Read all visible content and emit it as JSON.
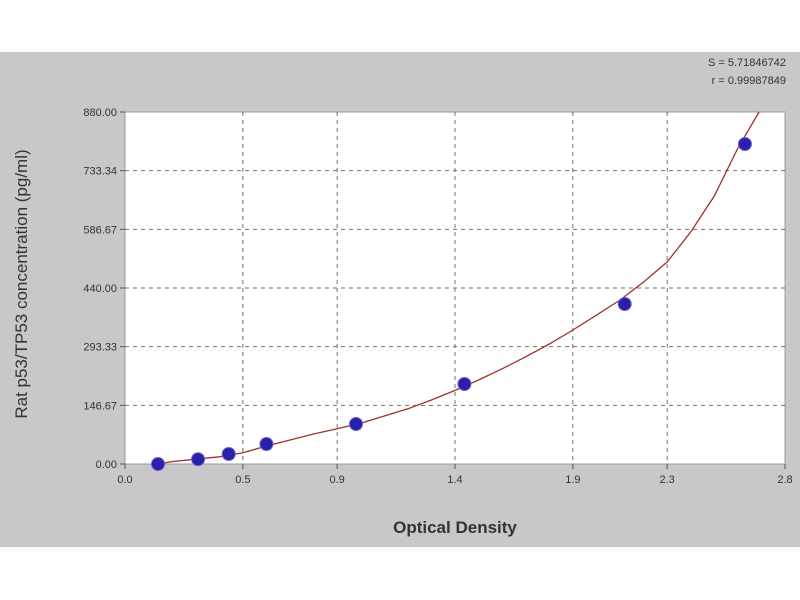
{
  "chart_data": {
    "type": "scatter",
    "title": "",
    "xlabel": "Optical Density",
    "ylabel": "Rat p53/TP53 concentration (pg/ml)",
    "xlim": [
      0.0,
      2.8
    ],
    "ylim": [
      0,
      880
    ],
    "x_ticks": [
      0.0,
      0.5,
      0.9,
      1.4,
      1.9,
      2.3,
      2.8
    ],
    "x_tick_labels": [
      "0.0",
      "0.5",
      "0.9",
      "1.4",
      "1.9",
      "2.3",
      "2.8"
    ],
    "y_ticks": [
      0,
      146.67,
      293.33,
      440,
      586.67,
      733.34,
      880
    ],
    "y_tick_labels": [
      "0.00",
      "146.67",
      "293.33",
      "440.00",
      "586.67",
      "733.34",
      "880.00"
    ],
    "grid": true,
    "stats": [
      "S = 5.71846742",
      "r = 0.99987849"
    ],
    "colors": {
      "points": "#2a1fa8",
      "curve": "#a0302a",
      "grid": "#707070"
    },
    "points": [
      {
        "x": 0.14,
        "y": 0
      },
      {
        "x": 0.31,
        "y": 12
      },
      {
        "x": 0.44,
        "y": 25
      },
      {
        "x": 0.6,
        "y": 50
      },
      {
        "x": 0.98,
        "y": 100
      },
      {
        "x": 1.44,
        "y": 200
      },
      {
        "x": 2.12,
        "y": 400
      },
      {
        "x": 2.63,
        "y": 800
      }
    ],
    "fit_curve": {
      "x": [
        0.14,
        0.2,
        0.3,
        0.4,
        0.5,
        0.6,
        0.7,
        0.8,
        0.9,
        1.0,
        1.1,
        1.2,
        1.3,
        1.4,
        1.5,
        1.6,
        1.7,
        1.8,
        1.9,
        2.0,
        2.1,
        2.2,
        2.3,
        2.4,
        2.5,
        2.6,
        2.69
      ],
      "y": [
        0,
        6,
        12,
        18,
        28,
        45,
        60,
        75,
        88,
        102,
        120,
        138,
        160,
        184,
        210,
        238,
        268,
        300,
        335,
        372,
        410,
        455,
        505,
        580,
        670,
        790,
        880
      ]
    }
  }
}
